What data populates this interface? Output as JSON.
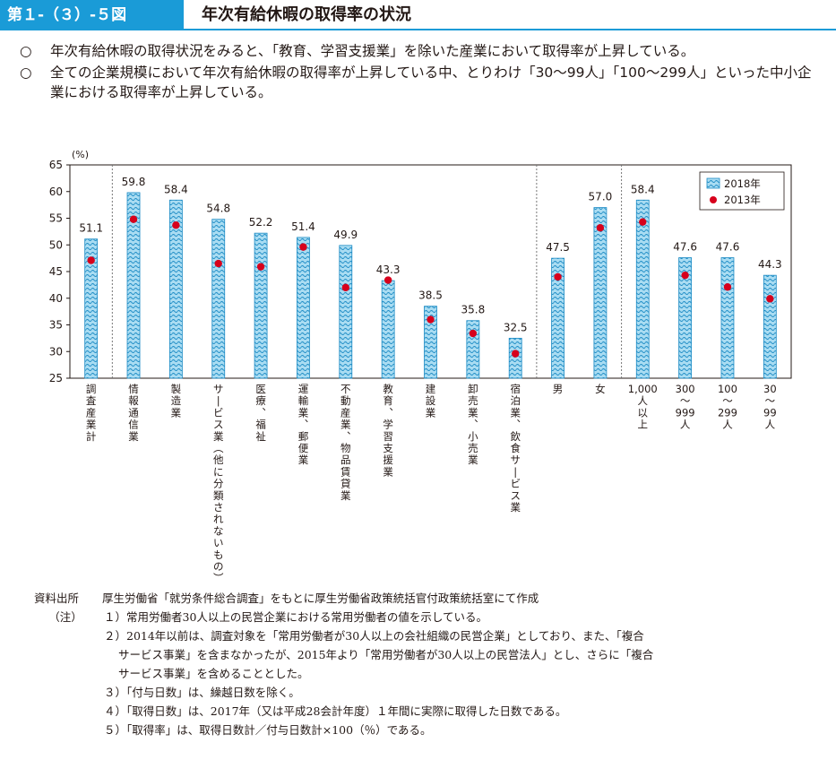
{
  "header": {
    "figure_number": "第１-（３）-５図",
    "title": "年次有給休暇の取得率の状況"
  },
  "summary": [
    {
      "mark": "○",
      "text": "年次有給休暇の取得状況をみると、「教育、学習支援業」を除いた産業において取得率が上昇している。"
    },
    {
      "mark": "○",
      "text": "全ての企業規模において年次有給休暇の取得率が上昇している中、とりわけ「30～99人」「100～299人」といった中小企業における取得率が上昇している。"
    }
  ],
  "chart_data": {
    "type": "bar",
    "unit_label": "(%)",
    "ylim": [
      25,
      65
    ],
    "yticks": [
      25,
      30,
      35,
      40,
      45,
      50,
      55,
      60,
      65
    ],
    "categories": [
      "調査産業計",
      "情報通信業",
      "製造業",
      "サービス業（他に分類されないもの）",
      "医療、福祉",
      "運輸業、郵便業",
      "不動産業、物品賃貸業",
      "教育、学習支援業",
      "建設業",
      "卸売業、小売業",
      "宿泊業、飲食サービス業",
      "男",
      "女",
      "1,000人以上",
      "300～999人",
      "100～299人",
      "30～99人"
    ],
    "series": [
      {
        "name": "2018年",
        "type": "bar",
        "color": "#3aa6d6",
        "values": [
          51.1,
          59.8,
          58.4,
          54.8,
          52.2,
          51.4,
          49.9,
          43.3,
          38.5,
          35.8,
          32.5,
          47.5,
          57.0,
          58.4,
          47.6,
          47.6,
          44.3
        ],
        "labels": [
          "51.1",
          "59.8",
          "58.4",
          "54.8",
          "52.2",
          "51.4",
          "49.9",
          "43.3",
          "38.5",
          "35.8",
          "32.5",
          "47.5",
          "57.0",
          "58.4",
          "47.6",
          "47.6",
          "44.3"
        ]
      },
      {
        "name": "2013年",
        "type": "point",
        "color": "#d7001c",
        "values": [
          47.1,
          54.8,
          53.7,
          46.5,
          45.9,
          49.6,
          42.0,
          43.4,
          36.0,
          33.4,
          29.6,
          44.0,
          53.2,
          54.3,
          44.3,
          42.1,
          39.9
        ]
      }
    ],
    "group_separators_after": [
      0,
      10,
      12
    ],
    "legend_position": "top-right"
  },
  "notes": {
    "source_label": "資料出所",
    "source_text": "厚生労働省「就労条件総合調査」をもとに厚生労働省政策統括官付政策統括室にて作成",
    "notes_label": "（注）",
    "items": [
      "１）常用労働者30人以上の民営企業における常用労働者の値を示している。",
      "２）2014年以前は、調査対象を「常用労働者が30人以上の会社組織の民営企業」としており、また、「複合",
      "サービス事業」を含まなかったが、2015年より「常用労働者が30人以上の民営法人」とし、さらに「複合",
      "サービス事業」を含めることとした。",
      "３）「付与日数」は、繰越日数を除く。",
      "４）「取得日数」は、2017年（又は平成28会計年度）１年間に実際に取得した日数である。",
      "５）「取得率」は、取得日数計／付与日数計×100（％）である。"
    ]
  }
}
